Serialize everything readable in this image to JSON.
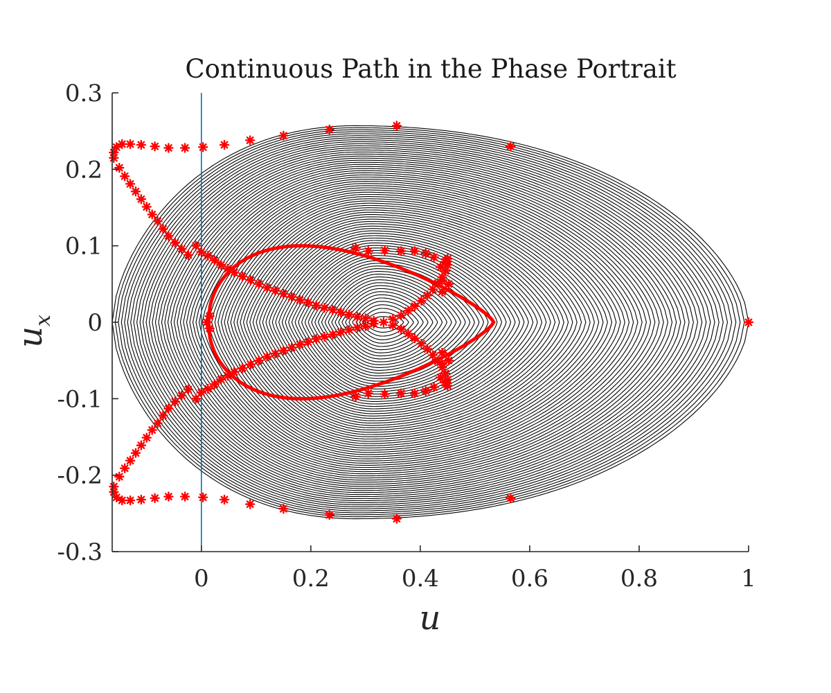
{
  "chart_data": {
    "type": "line",
    "title": "Continuous Path in the Phase Portrait",
    "xlabel": "u",
    "ylabel_base": "u",
    "ylabel_sub": "x",
    "xlim": [
      -0.163,
      1.0
    ],
    "ylim": [
      -0.3,
      0.3
    ],
    "xticks": [
      "0",
      "0.2",
      "0.4",
      "0.6",
      "0.8",
      "1"
    ],
    "yticks": [
      "0.3",
      "0.2",
      "0.1",
      "0",
      "-0.1",
      "-0.2",
      "-0.3"
    ],
    "grid": false,
    "legend": "none",
    "center_equilibrium": [
      0.333,
      0.0
    ],
    "saddle_point": [
      1.0,
      0.0
    ],
    "periodic_orbit_family": {
      "color": "#000000",
      "count": 80,
      "u_min_range": [
        0.31,
        -0.163
      ],
      "u_max_range": [
        0.35,
        1.0
      ],
      "ux_amplitude_max": 0.257
    },
    "homoclinic_orbit": {
      "color": "#ff0000",
      "u_range": [
        0.0,
        0.534
      ],
      "ux_amplitude": 0.1
    },
    "reference_line": {
      "color": "#0072bd",
      "x": 0.0
    },
    "marker_series": {
      "color": "#ff0000",
      "marker": "asterisk",
      "points": [
        [
          -0.16,
          0.222
        ],
        [
          -0.155,
          0.229
        ],
        [
          -0.145,
          0.233
        ],
        [
          -0.13,
          0.233
        ],
        [
          -0.11,
          0.232
        ],
        [
          -0.085,
          0.23
        ],
        [
          -0.06,
          0.228
        ],
        [
          -0.03,
          0.228
        ],
        [
          0.003,
          0.229
        ],
        [
          0.042,
          0.232
        ],
        [
          0.089,
          0.238
        ],
        [
          0.15,
          0.244
        ],
        [
          0.234,
          0.252
        ],
        [
          0.357,
          0.257
        ],
        [
          0.565,
          0.23
        ],
        [
          -0.16,
          0.215
        ],
        [
          -0.15,
          0.202
        ],
        [
          -0.14,
          0.191
        ],
        [
          -0.13,
          0.181
        ],
        [
          -0.12,
          0.171
        ],
        [
          -0.11,
          0.161
        ],
        [
          -0.1,
          0.151
        ],
        [
          -0.09,
          0.141
        ],
        [
          -0.08,
          0.132
        ],
        [
          -0.07,
          0.122
        ],
        [
          -0.06,
          0.113
        ],
        [
          -0.048,
          0.104
        ],
        [
          -0.036,
          0.096
        ],
        [
          -0.024,
          0.088
        ],
        [
          -0.01,
          0.1
        ],
        [
          0.0,
          0.092
        ],
        [
          0.012,
          0.087
        ],
        [
          0.024,
          0.081
        ],
        [
          0.036,
          0.075
        ],
        [
          0.048,
          0.07
        ],
        [
          0.06,
          0.065
        ],
        [
          0.075,
          0.06
        ],
        [
          0.09,
          0.055
        ],
        [
          0.105,
          0.05
        ],
        [
          0.12,
          0.045
        ],
        [
          0.135,
          0.041
        ],
        [
          0.15,
          0.037
        ],
        [
          0.165,
          0.033
        ],
        [
          0.18,
          0.029
        ],
        [
          0.195,
          0.026
        ],
        [
          0.21,
          0.022
        ],
        [
          0.225,
          0.019
        ],
        [
          0.24,
          0.016
        ],
        [
          0.255,
          0.013
        ],
        [
          0.27,
          0.01
        ],
        [
          0.285,
          0.007
        ],
        [
          0.3,
          0.005
        ],
        [
          0.315,
          0.002
        ],
        [
          0.333,
          0.0
        ],
        [
          0.35,
          0.004
        ],
        [
          0.365,
          0.009
        ],
        [
          0.378,
          0.015
        ],
        [
          0.39,
          0.021
        ],
        [
          0.402,
          0.028
        ],
        [
          0.413,
          0.035
        ],
        [
          0.423,
          0.043
        ],
        [
          0.432,
          0.051
        ],
        [
          0.44,
          0.059
        ],
        [
          0.446,
          0.067
        ],
        [
          0.45,
          0.075
        ],
        [
          0.45,
          0.083
        ],
        [
          0.445,
          0.079
        ],
        [
          0.437,
          0.072
        ],
        [
          0.425,
          0.085
        ],
        [
          0.41,
          0.09
        ],
        [
          0.39,
          0.093
        ],
        [
          0.365,
          0.093
        ],
        [
          0.335,
          0.094
        ],
        [
          0.305,
          0.093
        ],
        [
          0.282,
          0.097
        ],
        [
          0.44,
          0.055
        ],
        [
          0.452,
          0.05
        ],
        [
          0.44,
          0.04
        ],
        [
          0.015,
          0.008
        ],
        [
          0.01,
          0.0
        ],
        [
          0.015,
          -0.008
        ],
        [
          0.44,
          -0.04
        ],
        [
          0.452,
          -0.05
        ],
        [
          0.44,
          -0.055
        ],
        [
          0.282,
          -0.097
        ],
        [
          0.305,
          -0.093
        ],
        [
          0.335,
          -0.094
        ],
        [
          0.365,
          -0.093
        ],
        [
          0.39,
          -0.093
        ],
        [
          0.41,
          -0.09
        ],
        [
          0.425,
          -0.085
        ],
        [
          0.437,
          -0.072
        ],
        [
          0.445,
          -0.079
        ],
        [
          0.45,
          -0.083
        ],
        [
          0.45,
          -0.075
        ],
        [
          0.446,
          -0.067
        ],
        [
          0.44,
          -0.059
        ],
        [
          0.432,
          -0.051
        ],
        [
          0.423,
          -0.043
        ],
        [
          0.413,
          -0.035
        ],
        [
          0.402,
          -0.028
        ],
        [
          0.39,
          -0.021
        ],
        [
          0.378,
          -0.015
        ],
        [
          0.365,
          -0.009
        ],
        [
          0.35,
          -0.004
        ],
        [
          0.315,
          -0.002
        ],
        [
          0.3,
          -0.005
        ],
        [
          0.285,
          -0.007
        ],
        [
          0.27,
          -0.01
        ],
        [
          0.255,
          -0.013
        ],
        [
          0.24,
          -0.016
        ],
        [
          0.225,
          -0.019
        ],
        [
          0.21,
          -0.022
        ],
        [
          0.195,
          -0.026
        ],
        [
          0.18,
          -0.029
        ],
        [
          0.165,
          -0.033
        ],
        [
          0.15,
          -0.037
        ],
        [
          0.135,
          -0.041
        ],
        [
          0.12,
          -0.045
        ],
        [
          0.105,
          -0.05
        ],
        [
          0.09,
          -0.055
        ],
        [
          0.075,
          -0.06
        ],
        [
          0.06,
          -0.065
        ],
        [
          0.048,
          -0.07
        ],
        [
          0.036,
          -0.075
        ],
        [
          0.024,
          -0.081
        ],
        [
          0.012,
          -0.087
        ],
        [
          0.0,
          -0.092
        ],
        [
          -0.01,
          -0.1
        ],
        [
          -0.024,
          -0.088
        ],
        [
          -0.036,
          -0.096
        ],
        [
          -0.048,
          -0.104
        ],
        [
          -0.06,
          -0.113
        ],
        [
          -0.07,
          -0.122
        ],
        [
          -0.08,
          -0.132
        ],
        [
          -0.09,
          -0.141
        ],
        [
          -0.1,
          -0.151
        ],
        [
          -0.11,
          -0.161
        ],
        [
          -0.12,
          -0.171
        ],
        [
          -0.13,
          -0.181
        ],
        [
          -0.14,
          -0.191
        ],
        [
          -0.15,
          -0.202
        ],
        [
          -0.16,
          -0.215
        ],
        [
          -0.16,
          -0.222
        ],
        [
          -0.155,
          -0.229
        ],
        [
          -0.145,
          -0.233
        ],
        [
          -0.13,
          -0.233
        ],
        [
          -0.11,
          -0.232
        ],
        [
          -0.085,
          -0.23
        ],
        [
          -0.06,
          -0.228
        ],
        [
          -0.03,
          -0.228
        ],
        [
          0.003,
          -0.229
        ],
        [
          0.042,
          -0.232
        ],
        [
          0.089,
          -0.238
        ],
        [
          0.15,
          -0.244
        ],
        [
          0.234,
          -0.252
        ],
        [
          0.357,
          -0.257
        ],
        [
          0.565,
          -0.23
        ],
        [
          1.0,
          0.0
        ]
      ]
    }
  }
}
